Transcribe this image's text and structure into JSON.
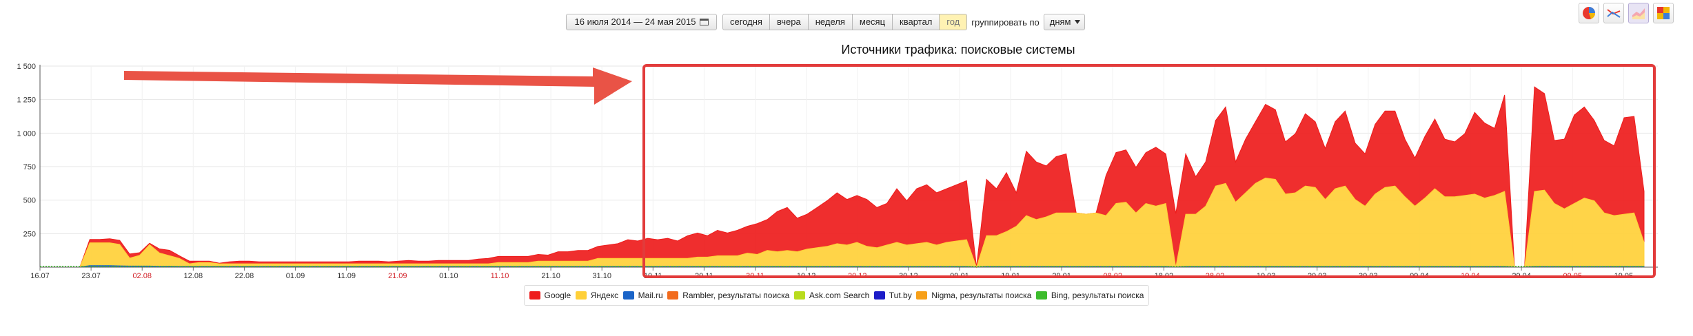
{
  "toolbar": {
    "date_range": "16 июля 2014 — 24 мая 2015",
    "periods": [
      "сегодня",
      "вчера",
      "неделя",
      "месяц",
      "квартал",
      "год"
    ],
    "active_period": "год",
    "group_label": "группировать по",
    "group_value": "дням"
  },
  "view_icons": [
    "pie-chart-icon",
    "line-chart-icon",
    "area-chart-icon",
    "heatmap-icon"
  ],
  "chart_data": {
    "type": "area",
    "title": "Источники трафика: поисковые системы",
    "stacked": true,
    "ylim": [
      0,
      1500
    ],
    "yticks": [
      250,
      500,
      750,
      1000,
      1250,
      1500
    ],
    "ytick_labels": [
      "250",
      "500",
      "750",
      "1 000",
      "1 250",
      "1 500"
    ],
    "grid": true,
    "x_start": "2014-07-16",
    "x_end": "2015-05-24",
    "xtick_labels": [
      {
        "label": "16.07",
        "weekend": false
      },
      {
        "label": "23.07",
        "weekend": false
      },
      {
        "label": "02.08",
        "weekend": true
      },
      {
        "label": "12.08",
        "weekend": false
      },
      {
        "label": "22.08",
        "weekend": false
      },
      {
        "label": "01.09",
        "weekend": false
      },
      {
        "label": "11.09",
        "weekend": false
      },
      {
        "label": "21.09",
        "weekend": true
      },
      {
        "label": "01.10",
        "weekend": false
      },
      {
        "label": "11.10",
        "weekend": true
      },
      {
        "label": "21.10",
        "weekend": false
      },
      {
        "label": "31.10",
        "weekend": false
      },
      {
        "label": "10.11",
        "weekend": false
      },
      {
        "label": "20.11",
        "weekend": false
      },
      {
        "label": "30.11",
        "weekend": true
      },
      {
        "label": "10.12",
        "weekend": false
      },
      {
        "label": "20.12",
        "weekend": true
      },
      {
        "label": "30.12",
        "weekend": false
      },
      {
        "label": "09.01",
        "weekend": false
      },
      {
        "label": "19.01",
        "weekend": false
      },
      {
        "label": "29.01",
        "weekend": false
      },
      {
        "label": "08.02",
        "weekend": true
      },
      {
        "label": "18.02",
        "weekend": false
      },
      {
        "label": "28.02",
        "weekend": true
      },
      {
        "label": "10.03",
        "weekend": false
      },
      {
        "label": "20.03",
        "weekend": false
      },
      {
        "label": "30.03",
        "weekend": false
      },
      {
        "label": "09.04",
        "weekend": false
      },
      {
        "label": "19.04",
        "weekend": true
      },
      {
        "label": "29.04",
        "weekend": false
      },
      {
        "label": "09.05",
        "weekend": true
      },
      {
        "label": "19.05",
        "weekend": false
      }
    ],
    "series": [
      {
        "name": "Google",
        "color": "#ee1c1c",
        "values": [
          0,
          0,
          0,
          0,
          0,
          25,
          25,
          30,
          30,
          30,
          20,
          10,
          30,
          40,
          20,
          20,
          10,
          10,
          5,
          15,
          20,
          20,
          15,
          15,
          15,
          15,
          15,
          15,
          15,
          15,
          15,
          15,
          20,
          20,
          20,
          15,
          20,
          25,
          20,
          20,
          25,
          25,
          25,
          25,
          35,
          40,
          45,
          45,
          45,
          45,
          50,
          45,
          70,
          70,
          80,
          80,
          90,
          100,
          110,
          140,
          130,
          150,
          140,
          150,
          130,
          170,
          180,
          160,
          190,
          170,
          190,
          200,
          230,
          230,
          300,
          320,
          250,
          260,
          300,
          340,
          380,
          340,
          350,
          350,
          300,
          310,
          400,
          330,
          410,
          430,
          390,
          400,
          420,
          440,
          0,
          420,
          350,
          440,
          250,
          480,
          430,
          380,
          420,
          440,
          0,
          0,
          0,
          300,
          380,
          390,
          340,
          380,
          440,
          370,
          400,
          450,
          280,
          330,
          490,
          570,
          300,
          400,
          460,
          550,
          520,
          390,
          440,
          540,
          490,
          380,
          500,
          560,
          420,
          390,
          520,
          570,
          560,
          430,
          360,
          460,
          520,
          430,
          410,
          460,
          610,
          560,
          500,
          720,
          0,
          0,
          780,
          720,
          470,
          520,
          660,
          680,
          600,
          540,
          520,
          720,
          720,
          380
        ]
      },
      {
        "name": "Яндекс",
        "color": "#ffd038",
        "values": [
          0,
          0,
          0,
          0,
          0,
          170,
          170,
          170,
          160,
          60,
          80,
          160,
          100,
          80,
          60,
          20,
          30,
          30,
          20,
          20,
          20,
          20,
          20,
          20,
          20,
          20,
          20,
          20,
          20,
          20,
          20,
          20,
          20,
          20,
          20,
          20,
          20,
          20,
          20,
          20,
          20,
          20,
          20,
          20,
          20,
          20,
          30,
          30,
          30,
          30,
          40,
          40,
          40,
          40,
          40,
          40,
          60,
          60,
          60,
          60,
          60,
          60,
          60,
          60,
          60,
          60,
          70,
          70,
          80,
          80,
          80,
          100,
          90,
          120,
          110,
          120,
          110,
          130,
          140,
          150,
          170,
          160,
          180,
          150,
          140,
          160,
          180,
          160,
          170,
          180,
          160,
          180,
          190,
          200,
          0,
          230,
          230,
          260,
          300,
          380,
          350,
          370,
          400,
          400,
          400,
          390,
          400,
          380,
          470,
          480,
          400,
          470,
          450,
          470,
          0,
          390,
          390,
          450,
          600,
          620,
          480,
          550,
          620,
          660,
          650,
          540,
          550,
          600,
          590,
          500,
          580,
          600,
          500,
          450,
          540,
          590,
          600,
          520,
          450,
          510,
          580,
          520,
          520,
          530,
          540,
          510,
          530,
          560,
          0,
          0,
          560,
          570,
          470,
          430,
          470,
          510,
          490,
          400,
          380,
          390,
          400,
          180
        ],
        "values_note": null
      },
      {
        "name": "Mail.ru",
        "color": "#1a64c8",
        "values": [
          0,
          0,
          0,
          0,
          0,
          12,
          12,
          12,
          10,
          8,
          8,
          8,
          6,
          6,
          5,
          5,
          5,
          5,
          5,
          5,
          5,
          5,
          5,
          5,
          5,
          5,
          5,
          5,
          5,
          5,
          5,
          5,
          5,
          5,
          5,
          5,
          5,
          5,
          5,
          5,
          5,
          5,
          5,
          5,
          5,
          5,
          5,
          5,
          5,
          5,
          5,
          5,
          5,
          5,
          5,
          5,
          5,
          5,
          5,
          5,
          5,
          5,
          5,
          5,
          5,
          5,
          5,
          5,
          5,
          5,
          5,
          5,
          5,
          5,
          5,
          5,
          5,
          5,
          5,
          5,
          5,
          5,
          5,
          5,
          5,
          5,
          5,
          5,
          5,
          5,
          5,
          5,
          5,
          5,
          0,
          5,
          5,
          5,
          5,
          5,
          5,
          5,
          5,
          5,
          5,
          5,
          5,
          5,
          5,
          5,
          5,
          5,
          5,
          5,
          0,
          5,
          5,
          5,
          5,
          5,
          5,
          5,
          5,
          5,
          5,
          5,
          5,
          5,
          5,
          5,
          5,
          5,
          5,
          5,
          5,
          5,
          5,
          5,
          5,
          5,
          5,
          5,
          5,
          5,
          5,
          5,
          5,
          5,
          0,
          0,
          5,
          5,
          5,
          5,
          5,
          5,
          5,
          5,
          5,
          5,
          5,
          5
        ]
      },
      {
        "name": "Rambler, результаты поиска",
        "color": "#f26b1d",
        "values": []
      },
      {
        "name": "Ask.com Search",
        "color": "#b8dc1e",
        "values": []
      },
      {
        "name": "Tut.by",
        "color": "#1c1cc8",
        "values": []
      },
      {
        "name": "Nigma, результаты поиска",
        "color": "#f7a019",
        "values": []
      },
      {
        "name": "Bing, результаты поиска",
        "color": "#3cbc2c",
        "values": []
      }
    ]
  }
}
